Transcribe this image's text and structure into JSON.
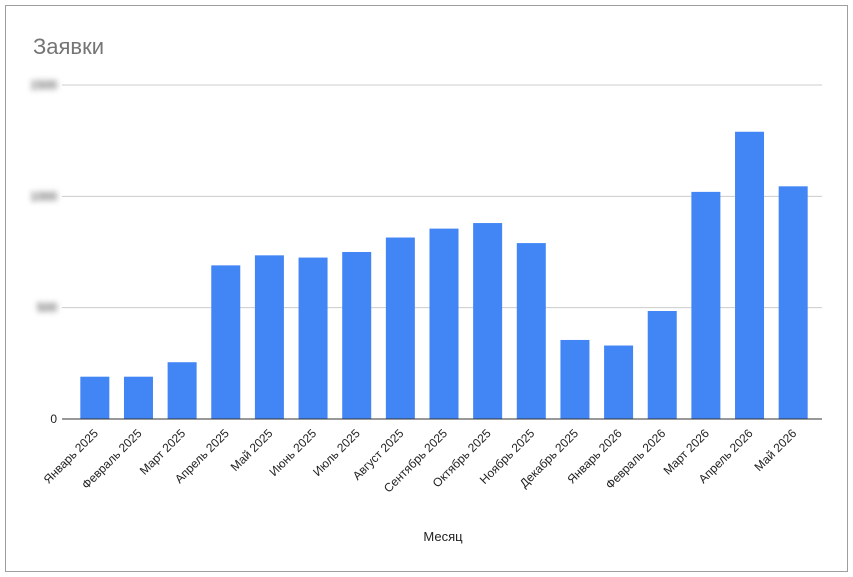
{
  "chart_data": {
    "type": "bar",
    "title": "Заявки",
    "x_label": "Месяц",
    "categories": [
      "Январь 2025",
      "Февраль 2025",
      "Март 2025",
      "Апрель 2025",
      "Май 2025",
      "Июнь 2025",
      "Июль 2025",
      "Август 2025",
      "Сентябрь 2025",
      "Октябрь 2025",
      "Ноябрь 2025",
      "Декабрь 2025",
      "Январь 2026",
      "Февраль 2026",
      "Март 2026",
      "Апрель 2026",
      "Май 2026"
    ],
    "values": [
      190,
      190,
      255,
      690,
      735,
      725,
      750,
      815,
      855,
      880,
      790,
      355,
      330,
      485,
      1020,
      1290,
      1045
    ],
    "color": "#4285f4",
    "ylim": [
      0,
      1500
    ],
    "yticks": [
      0,
      500,
      1000,
      1500
    ],
    "grid": true
  }
}
